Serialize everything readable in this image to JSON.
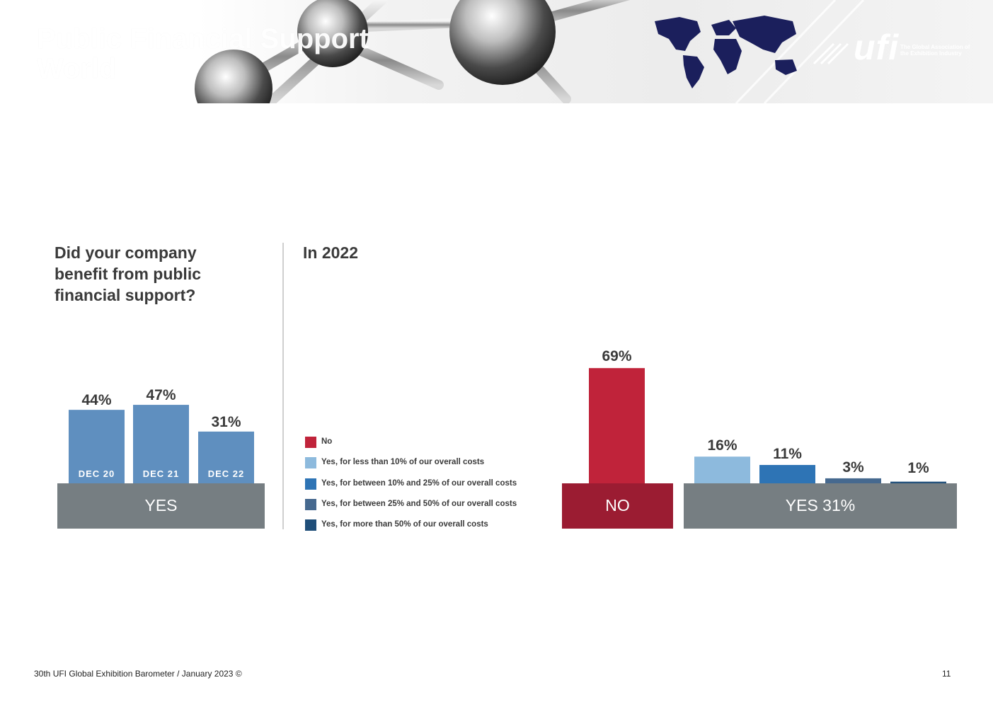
{
  "header": {
    "slide_title": "Public Financial Support\nWorld",
    "logo": {
      "word": "ufi",
      "tagline": "The Global Association of the Exhibition Industry"
    }
  },
  "left_panel": {
    "question": "Did your company\nbenefit from public\nfinancial support?"
  },
  "right_panel": {
    "subtitle": "In 2022"
  },
  "colors": {
    "left_bars": "#5f8fbf",
    "grey_base": "#767e82",
    "no_red": "#c0233a",
    "no_base": "#9b1c32",
    "yes_lt10": "#8dbadd",
    "yes_10_25": "#2e74b5",
    "yes_25_50": "#46698f",
    "yes_gt50": "#1f4e79"
  },
  "legend": [
    {
      "label": "No",
      "color": "#c0233a"
    },
    {
      "label": "Yes, for less than 10%  of our overall costs",
      "color": "#8dbadd"
    },
    {
      "label": "Yes, for between 10%  and 25%  of our overall costs",
      "color": "#2e74b5"
    },
    {
      "label": "Yes, for between 25%  and 50%  of our overall costs",
      "color": "#46698f"
    },
    {
      "label": "Yes, for more than 50%  of our overall costs",
      "color": "#1f4e79"
    }
  ],
  "chart_data": [
    {
      "type": "bar",
      "categories": [
        "DEC 20",
        "DEC 21",
        "DEC 22"
      ],
      "values": [
        44,
        47,
        31
      ],
      "data_labels": [
        "44%",
        "47%",
        "31%"
      ],
      "group_label": "YES",
      "ylim": [
        0,
        100
      ]
    },
    {
      "type": "bar",
      "categories": [
        "No",
        "Yes, for less than 10%  of our overall costs",
        "Yes, for between 10%  and 25%  of our overall costs",
        "Yes, for between 25%  and 50%  of our overall costs",
        "Yes, for more than 50%  of our overall costs"
      ],
      "values": [
        69,
        16,
        11,
        3,
        1
      ],
      "data_labels": [
        "69%",
        "16%",
        "11%",
        "3%",
        "1%"
      ],
      "group_labels": [
        "NO",
        "YES 31%"
      ],
      "ylim": [
        0,
        100
      ]
    }
  ],
  "footer": {
    "source": "30th UFI Global Exhibition Barometer / January 2023 ©",
    "page": "11"
  }
}
